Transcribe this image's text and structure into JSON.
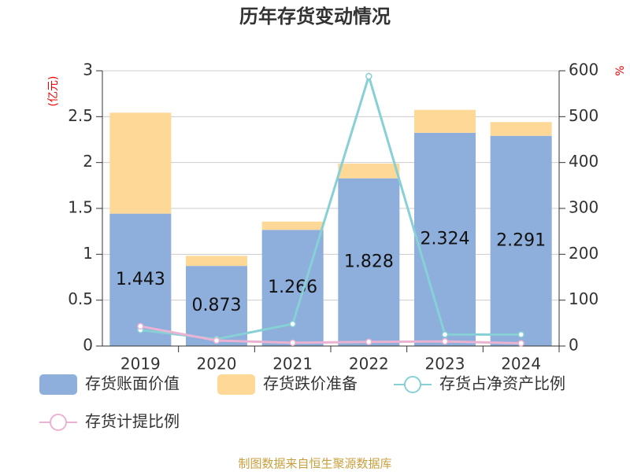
{
  "chart_data": {
    "type": "bar-line",
    "title": "历年存货变动情况",
    "y_label": "(亿元)",
    "y2_label": "%",
    "source": "制图数据来自恒生聚源数据库",
    "categories": [
      "2019",
      "2020",
      "2021",
      "2022",
      "2023",
      "2024"
    ],
    "series": [
      {
        "name": "存货账面价值",
        "type": "bar",
        "color": "#8eaedb",
        "data_labels": true,
        "values": [
          1.443,
          0.873,
          1.266,
          1.828,
          2.324,
          2.291
        ]
      },
      {
        "name": "存货跌价准备",
        "type": "bar",
        "color": "#fed897",
        "values": [
          1.1,
          0.11,
          0.09,
          0.16,
          0.25,
          0.15
        ]
      },
      {
        "name": "存货占净资产比例",
        "type": "line",
        "axis": "y2",
        "color": "#86d0d6",
        "values": [
          35,
          15,
          48,
          588,
          25,
          25
        ]
      },
      {
        "name": "存货计提比例",
        "type": "line",
        "axis": "y2",
        "color": "#eab3d3",
        "values": [
          43,
          12,
          7,
          9,
          10,
          6
        ]
      }
    ],
    "ylim": [
      0,
      3
    ],
    "yticks": [
      0,
      0.5,
      1,
      1.5,
      2,
      2.5,
      3
    ],
    "y2lim": [
      0,
      600
    ],
    "y2ticks": [
      0,
      100,
      200,
      300,
      400,
      500,
      600
    ],
    "grid": true
  }
}
